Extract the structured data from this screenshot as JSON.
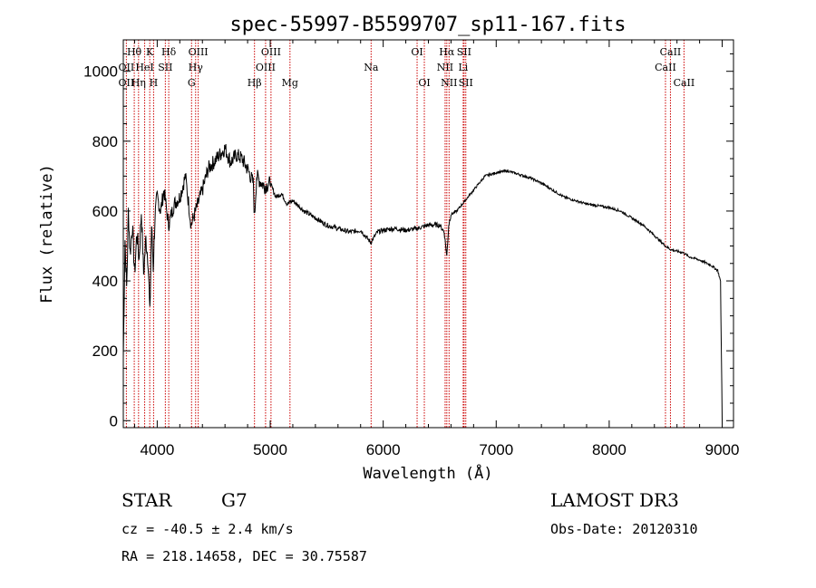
{
  "chart_data": {
    "type": "line",
    "title": "spec-55997-B5599707_sp11-167.fits",
    "xlabel": "Wavelength (Å)",
    "ylabel": "Flux (relative)",
    "xlim": [
      3700,
      9100
    ],
    "ylim": [
      -20,
      1090
    ],
    "xticks": [
      4000,
      5000,
      6000,
      7000,
      8000,
      9000
    ],
    "yticks": [
      0,
      200,
      400,
      600,
      800,
      1000
    ],
    "grid": false,
    "series": [
      {
        "x": [
          3700,
          3715,
          3730,
          3745,
          3760,
          3780,
          3800,
          3820,
          3840,
          3860,
          3880,
          3900,
          3920,
          3935,
          3950,
          3965,
          3980,
          4000,
          4030,
          4060,
          4100,
          4150,
          4200,
          4250,
          4300,
          4340,
          4400,
          4450,
          4500,
          4550,
          4600,
          4650,
          4700,
          4750,
          4800,
          4850,
          4861,
          4880,
          4900,
          4950,
          5000,
          5050,
          5100,
          5150,
          5200,
          5300,
          5400,
          5500,
          5600,
          5700,
          5800,
          5890,
          5950,
          6000,
          6100,
          6200,
          6300,
          6400,
          6500,
          6540,
          6563,
          6580,
          6600,
          6650,
          6700,
          6750,
          6800,
          6850,
          6900,
          6950,
          7000,
          7100,
          7200,
          7300,
          7400,
          7500,
          7600,
          7700,
          7800,
          7900,
          8000,
          8100,
          8200,
          8300,
          8400,
          8498,
          8542,
          8600,
          8662,
          8700,
          8800,
          8900,
          8960,
          8985,
          9000
        ],
        "y": [
          180,
          520,
          380,
          600,
          480,
          560,
          420,
          540,
          460,
          600,
          420,
          520,
          460,
          300,
          560,
          440,
          580,
          640,
          600,
          660,
          560,
          620,
          640,
          700,
          560,
          600,
          660,
          720,
          740,
          760,
          780,
          740,
          760,
          750,
          720,
          680,
          580,
          700,
          690,
          670,
          680,
          640,
          650,
          620,
          630,
          600,
          580,
          560,
          550,
          540,
          545,
          510,
          540,
          545,
          550,
          545,
          550,
          560,
          560,
          540,
          470,
          560,
          590,
          600,
          620,
          640,
          660,
          680,
          700,
          705,
          710,
          715,
          705,
          695,
          680,
          660,
          640,
          630,
          620,
          615,
          610,
          600,
          580,
          560,
          530,
          500,
          490,
          485,
          480,
          470,
          460,
          445,
          430,
          400,
          0
        ]
      }
    ],
    "spectral_lines": [
      {
        "label": "Hθ",
        "x": 3797,
        "row": 1
      },
      {
        "label": "K",
        "x": 3934,
        "row": 1
      },
      {
        "label": "Hδ",
        "x": 4102,
        "row": 1
      },
      {
        "label": "OIII",
        "x": 4363,
        "row": 1
      },
      {
        "label": "OIII",
        "x": 5007,
        "row": 1
      },
      {
        "label": "OI",
        "x": 6300,
        "row": 1
      },
      {
        "label": "Hα",
        "x": 6563,
        "row": 1
      },
      {
        "label": "SII",
        "x": 6716,
        "row": 1
      },
      {
        "label": "CaII",
        "x": 8542,
        "row": 1
      },
      {
        "label": "OII",
        "x": 3727,
        "row": 2
      },
      {
        "label": "HeI",
        "x": 3889,
        "row": 2
      },
      {
        "label": "SII",
        "x": 4072,
        "row": 2
      },
      {
        "label": "Hγ",
        "x": 4340,
        "row": 2
      },
      {
        "label": "OIII",
        "x": 4959,
        "row": 2
      },
      {
        "label": "Na",
        "x": 5893,
        "row": 2
      },
      {
        "label": "NII",
        "x": 6548,
        "row": 2
      },
      {
        "label": "Li",
        "x": 6708,
        "row": 2
      },
      {
        "label": "CaII",
        "x": 8498,
        "row": 2
      },
      {
        "label": "OII",
        "x": 3727,
        "row": 3
      },
      {
        "label": "Hη",
        "x": 3835,
        "row": 3
      },
      {
        "label": "H",
        "x": 3968,
        "row": 3
      },
      {
        "label": "G",
        "x": 4304,
        "row": 3
      },
      {
        "label": "Hβ",
        "x": 4861,
        "row": 3
      },
      {
        "label": "Mg",
        "x": 5175,
        "row": 3
      },
      {
        "label": "OI",
        "x": 6364,
        "row": 3
      },
      {
        "label": "NII",
        "x": 6583,
        "row": 3
      },
      {
        "label": "SII",
        "x": 6731,
        "row": 3
      },
      {
        "label": "CaII",
        "x": 8662,
        "row": 3
      }
    ]
  },
  "footer": {
    "class_label": "STAR",
    "subclass": "G7",
    "survey": "LAMOST DR3",
    "cz": "cz = -40.5 ± 2.4 km/s",
    "obs_date": "Obs-Date: 20120310",
    "coords": "RA = 218.14658, DEC =  30.75587"
  },
  "colors": {
    "spectrum": "#000000",
    "line_marker": "#cc0000"
  }
}
